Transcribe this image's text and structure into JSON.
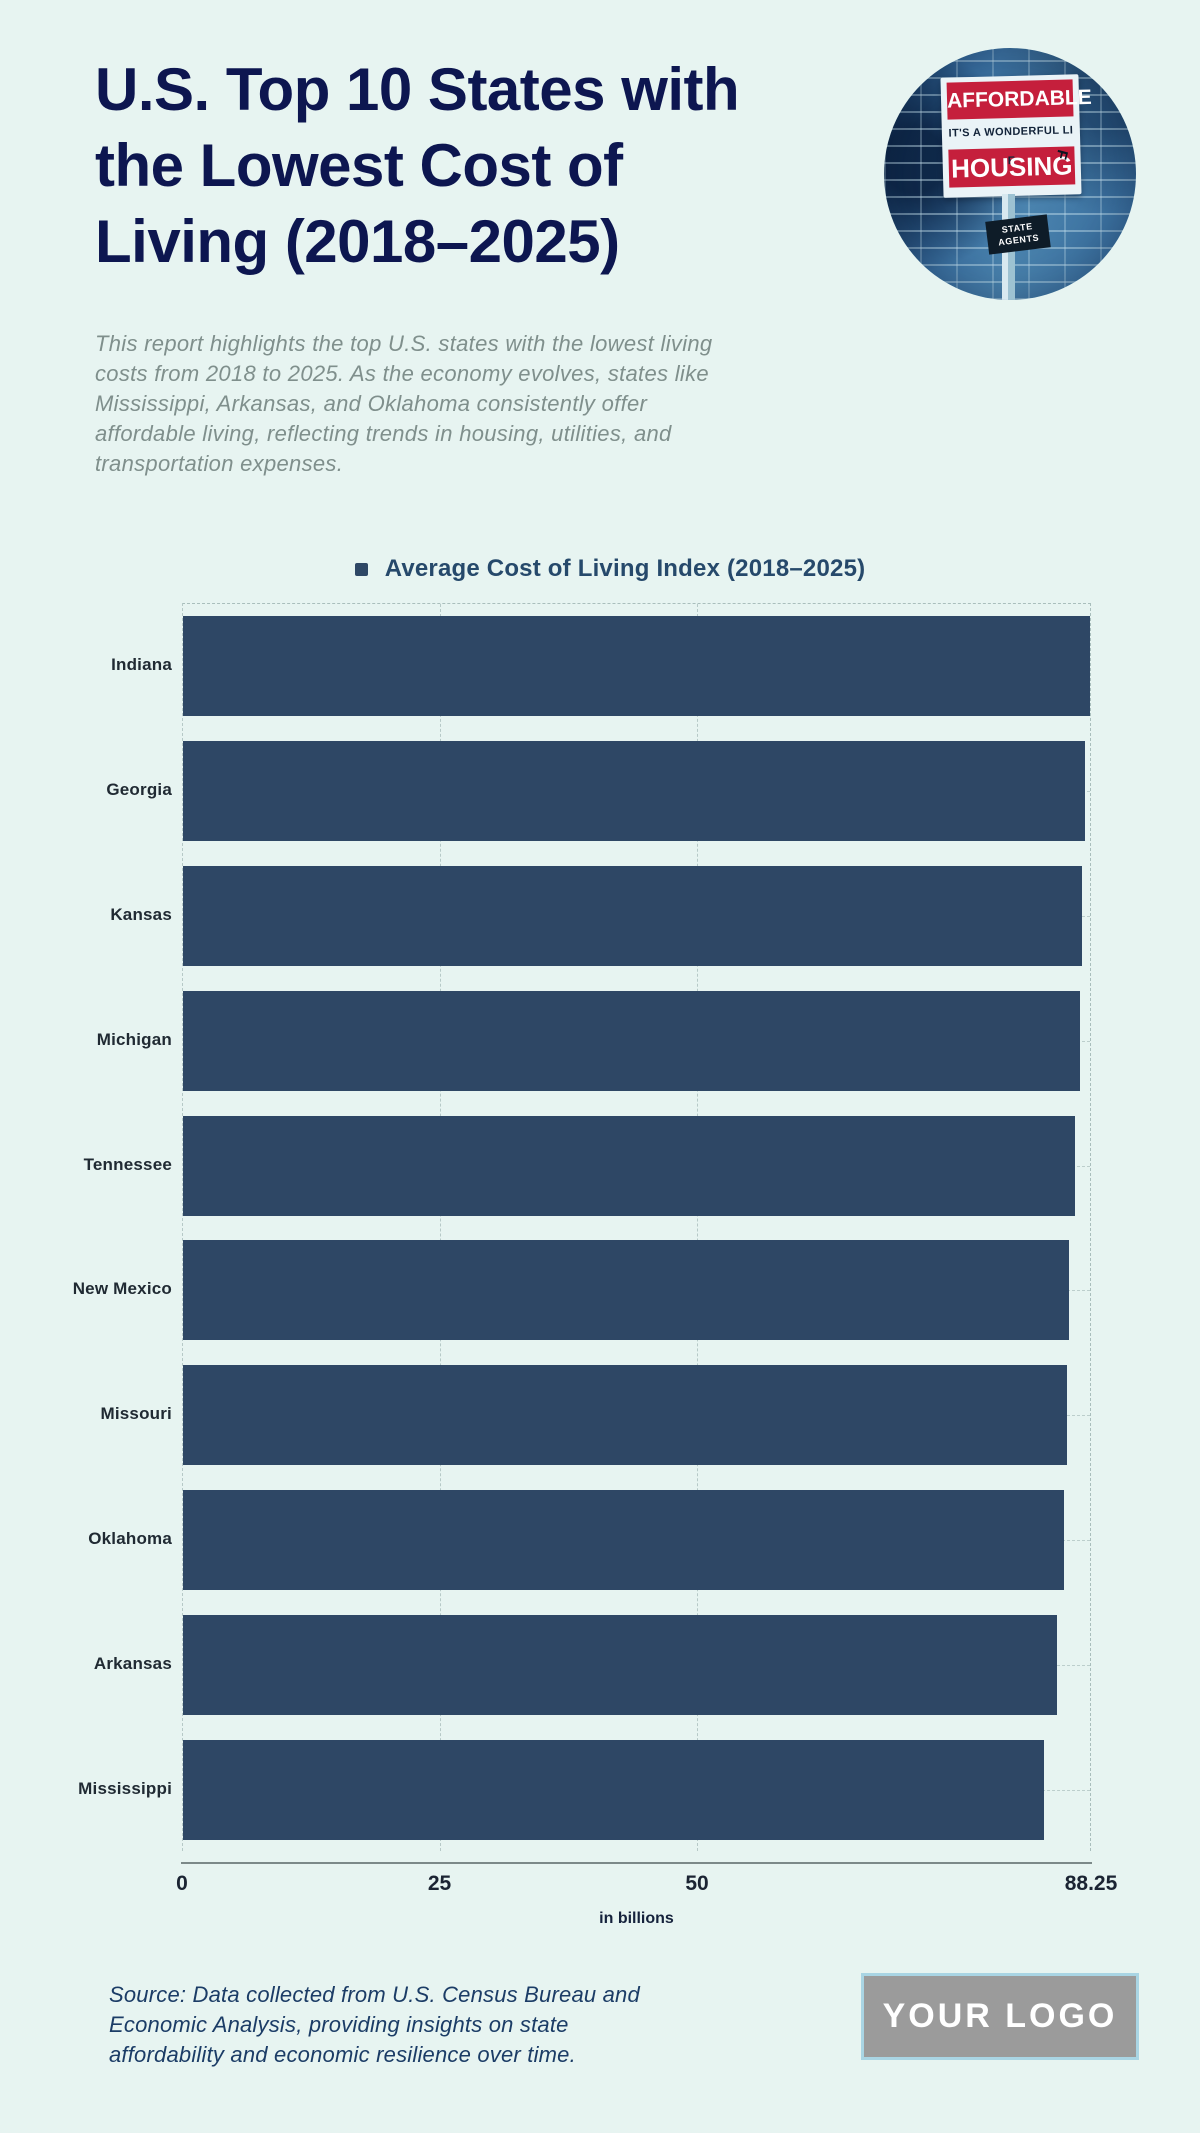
{
  "page": {
    "title": "U.S. Top 10 States with\nthe Lowest Cost of\nLiving (2018–2025)",
    "description": "This report highlights the top U.S. states with the lowest living\ncosts from 2018 to 2025. As the economy evolves, states like\nMississippi, Arkansas, and Oklahoma consistently offer\naffordable living, reflecting trends in housing, utilities, and\ntransportation expenses.",
    "source_note": "Source: Data collected from U.S. Census Bureau and\nEconomic Analysis, providing insights on state\naffordability and economic resilience over time.",
    "logo_text": "YOUR LOGO"
  },
  "colors": {
    "background": "#e7f4f1",
    "title": "#0d1650",
    "bar": "#2e4765",
    "legend_text": "#26496b",
    "description_text": "#7f8f8c",
    "source_text": "#1b3c66",
    "logo_background": "#9b9b9b",
    "logo_border": "#a9d5e4",
    "sign_red": "#c51f3c"
  },
  "hero_image": {
    "sign_line1": "AFFORDABLE",
    "sign_line2": "IT'S A WONDERFUL LI E",
    "sign_line3": "HOUSING",
    "sign_small_plate": "STATE\nAGENTS",
    "fallen_letter": "F"
  },
  "chart_data": {
    "type": "bar",
    "orientation": "horizontal",
    "title": "Average Cost of Living Index (2018–2025)",
    "categories": [
      "Indiana",
      "Georgia",
      "Kansas",
      "Michigan",
      "Tennessee",
      "New Mexico",
      "Missouri",
      "Oklahoma",
      "Arkansas",
      "Mississippi"
    ],
    "values": [
      88.25,
      87.75,
      87.5,
      87.25,
      86.75,
      86.25,
      86,
      85.75,
      85,
      83.75
    ],
    "xlabel": "in billions",
    "xticks": [
      "0",
      "25",
      "50",
      "88.25"
    ],
    "xtick_values": [
      0,
      25,
      50,
      88.25
    ],
    "xlim": [
      0,
      88.25
    ],
    "grid": "dashed",
    "legend_position": "top-center",
    "bar_color": "#2e4765"
  }
}
